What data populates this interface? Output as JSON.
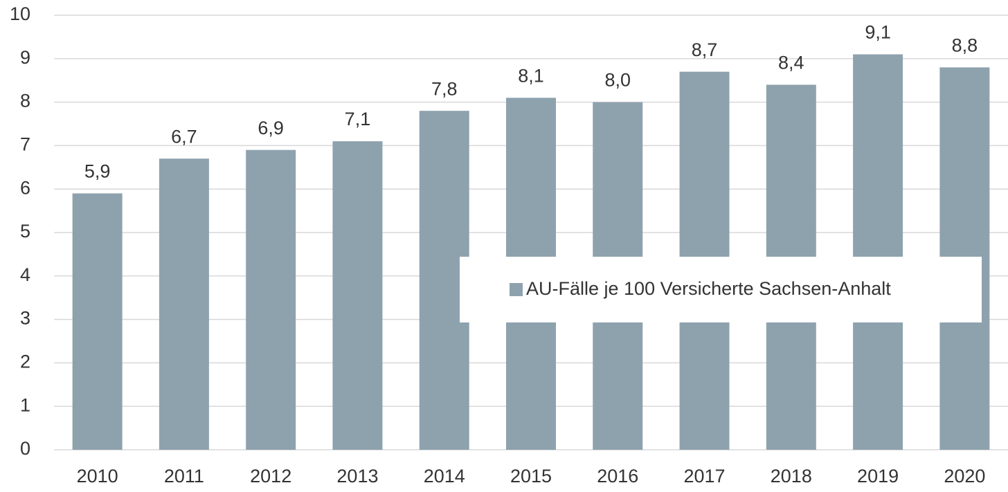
{
  "chart_data": {
    "type": "bar",
    "categories": [
      "2010",
      "2011",
      "2012",
      "2013",
      "2014",
      "2015",
      "2016",
      "2017",
      "2018",
      "2019",
      "2020"
    ],
    "series": [
      {
        "name": "AU-Fälle je 100 Versicherte Sachsen-Anhalt",
        "color": "#8ea2ae",
        "values": [
          5.9,
          6.7,
          6.9,
          7.1,
          7.8,
          8.1,
          8.0,
          8.7,
          8.4,
          9.1,
          8.8
        ],
        "value_labels": [
          "5,9",
          "6,7",
          "6,9",
          "7,1",
          "7,8",
          "8,1",
          "8,0",
          "8,7",
          "8,4",
          "9,1",
          "8,8"
        ]
      }
    ],
    "ylim": [
      0,
      10
    ],
    "yticks": [
      0,
      1,
      2,
      3,
      4,
      5,
      6,
      7,
      8,
      9,
      10
    ],
    "grid": true,
    "legend": "right"
  }
}
